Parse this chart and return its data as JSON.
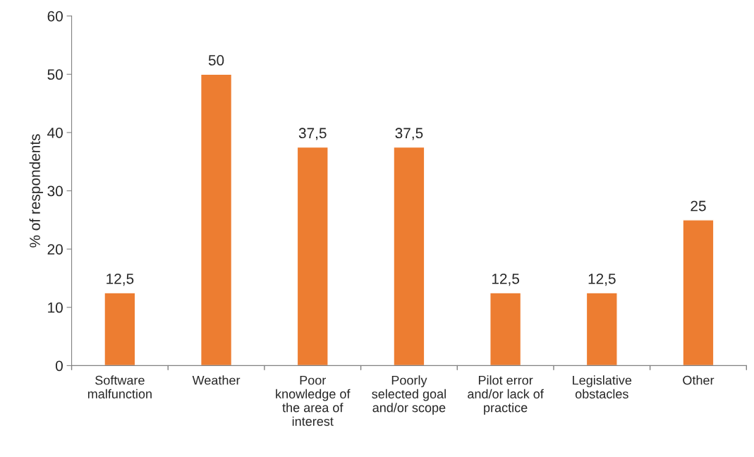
{
  "chart_data": {
    "type": "bar",
    "ylabel": "% of respondents",
    "categories": [
      "Software\nmalfunction",
      "Weather",
      "Poor\nknowledge of\nthe area of\ninterest",
      "Poorly\nselected goal\nand/or scope",
      "Pilot error\nand/or lack of\npractice",
      "Legislative\nobstacles",
      "Other"
    ],
    "values": [
      12.5,
      50,
      37.5,
      37.5,
      12.5,
      12.5,
      25
    ],
    "value_labels": [
      "12,5",
      "50",
      "37,5",
      "37,5",
      "12,5",
      "12,5",
      "25"
    ],
    "color": "#ed7d31",
    "ylim": [
      0,
      60
    ],
    "yticks": [
      0,
      10,
      20,
      30,
      40,
      50,
      60
    ],
    "grid": false
  }
}
